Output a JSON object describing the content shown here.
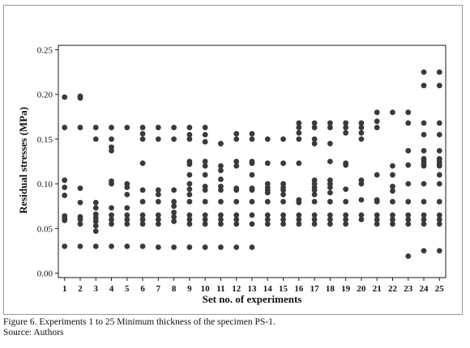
{
  "chart_data": {
    "type": "scatter",
    "xlabel": "Set no. of experiments",
    "ylabel": "Residual stresses (MPa)",
    "xlim": [
      0.6,
      25.4
    ],
    "ylim": [
      -0.005,
      0.255
    ],
    "x_ticks": [
      1,
      2,
      3,
      4,
      5,
      6,
      7,
      8,
      9,
      10,
      11,
      12,
      13,
      14,
      15,
      16,
      17,
      18,
      19,
      20,
      21,
      22,
      23,
      24,
      25
    ],
    "y_ticks": [
      0.0,
      0.05,
      0.1,
      0.15,
      0.2,
      0.25
    ],
    "y_tick_labels": [
      "0.00",
      "0.05",
      "0.10",
      "0.15",
      "0.20",
      "0.25"
    ],
    "grid": false,
    "legend": "none",
    "marker_color": "#3a3a3a",
    "points_by_set": [
      {
        "x": 1,
        "y": [
          0.197,
          0.163,
          0.104,
          0.096,
          0.087,
          0.064,
          0.061,
          0.059,
          0.03
        ]
      },
      {
        "x": 2,
        "y": [
          0.198,
          0.196,
          0.163,
          0.095,
          0.079,
          0.063,
          0.06,
          0.055,
          0.03
        ]
      },
      {
        "x": 3,
        "y": [
          0.163,
          0.15,
          0.079,
          0.073,
          0.066,
          0.062,
          0.058,
          0.053,
          0.047,
          0.03
        ]
      },
      {
        "x": 4,
        "y": [
          0.163,
          0.15,
          0.141,
          0.137,
          0.103,
          0.1,
          0.073,
          0.065,
          0.06,
          0.055,
          0.03
        ]
      },
      {
        "x": 5,
        "y": [
          0.163,
          0.1,
          0.096,
          0.088,
          0.073,
          0.065,
          0.06,
          0.055,
          0.03
        ]
      },
      {
        "x": 6,
        "y": [
          0.163,
          0.156,
          0.15,
          0.123,
          0.093,
          0.08,
          0.065,
          0.06,
          0.055,
          0.03
        ]
      },
      {
        "x": 7,
        "y": [
          0.163,
          0.15,
          0.093,
          0.088,
          0.08,
          0.065,
          0.06,
          0.055,
          0.029
        ]
      },
      {
        "x": 8,
        "y": [
          0.163,
          0.15,
          0.093,
          0.08,
          0.075,
          0.068,
          0.063,
          0.058,
          0.029
        ]
      },
      {
        "x": 9,
        "y": [
          0.163,
          0.155,
          0.15,
          0.125,
          0.122,
          0.11,
          0.1,
          0.094,
          0.088,
          0.08,
          0.065,
          0.06,
          0.055,
          0.029
        ]
      },
      {
        "x": 10,
        "y": [
          0.163,
          0.155,
          0.147,
          0.125,
          0.12,
          0.11,
          0.097,
          0.093,
          0.08,
          0.065,
          0.06,
          0.055,
          0.029
        ]
      },
      {
        "x": 11,
        "y": [
          0.145,
          0.145,
          0.12,
          0.115,
          0.105,
          0.097,
          0.093,
          0.08,
          0.065,
          0.06,
          0.055,
          0.029
        ]
      },
      {
        "x": 12,
        "y": [
          0.156,
          0.15,
          0.125,
          0.12,
          0.095,
          0.093,
          0.08,
          0.065,
          0.06,
          0.055,
          0.029
        ]
      },
      {
        "x": 13,
        "y": [
          0.156,
          0.15,
          0.125,
          0.123,
          0.11,
          0.095,
          0.093,
          0.08,
          0.065,
          0.055,
          0.029
        ]
      },
      {
        "x": 14,
        "y": [
          0.15,
          0.123,
          0.1,
          0.096,
          0.093,
          0.09,
          0.08,
          0.065,
          0.06,
          0.055
        ]
      },
      {
        "x": 15,
        "y": [
          0.15,
          0.123,
          0.1,
          0.096,
          0.093,
          0.088,
          0.08,
          0.065,
          0.06,
          0.055
        ]
      },
      {
        "x": 16,
        "y": [
          0.168,
          0.163,
          0.157,
          0.15,
          0.123,
          0.082,
          0.079,
          0.065,
          0.06,
          0.055
        ]
      },
      {
        "x": 17,
        "y": [
          0.168,
          0.163,
          0.15,
          0.145,
          0.104,
          0.1,
          0.096,
          0.093,
          0.088,
          0.08,
          0.065,
          0.06,
          0.055
        ]
      },
      {
        "x": 18,
        "y": [
          0.168,
          0.163,
          0.145,
          0.125,
          0.104,
          0.1,
          0.096,
          0.09,
          0.08,
          0.065,
          0.06,
          0.055
        ]
      },
      {
        "x": 19,
        "y": [
          0.168,
          0.163,
          0.157,
          0.123,
          0.121,
          0.094,
          0.08,
          0.065,
          0.06,
          0.055
        ]
      },
      {
        "x": 20,
        "y": [
          0.168,
          0.163,
          0.157,
          0.15,
          0.104,
          0.1,
          0.082,
          0.065,
          0.06
        ]
      },
      {
        "x": 21,
        "y": [
          0.18,
          0.17,
          0.163,
          0.11,
          0.082,
          0.08,
          0.065,
          0.06,
          0.055
        ]
      },
      {
        "x": 22,
        "y": [
          0.18,
          0.12,
          0.11,
          0.097,
          0.092,
          0.08,
          0.065,
          0.06,
          0.055
        ]
      },
      {
        "x": 23,
        "y": [
          0.18,
          0.168,
          0.137,
          0.121,
          0.1,
          0.08,
          0.065,
          0.06,
          0.055,
          0.019
        ]
      },
      {
        "x": 24,
        "y": [
          0.225,
          0.21,
          0.168,
          0.155,
          0.137,
          0.128,
          0.125,
          0.122,
          0.12,
          0.1,
          0.08,
          0.065,
          0.06,
          0.055,
          0.025
        ]
      },
      {
        "x": 25,
        "y": [
          0.225,
          0.21,
          0.168,
          0.155,
          0.137,
          0.128,
          0.125,
          0.122,
          0.12,
          0.11,
          0.1,
          0.08,
          0.065,
          0.06,
          0.055,
          0.025
        ]
      }
    ]
  },
  "caption": {
    "line1": "Figure 6. Experiments 1 to 25 Minimum thickness of the specimen PS-1.",
    "line2": "Source: Authors"
  }
}
